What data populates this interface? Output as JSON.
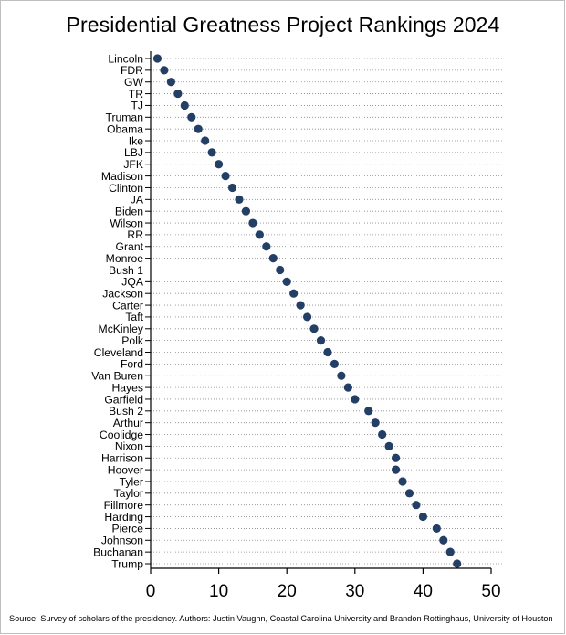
{
  "chart_data": {
    "type": "scatter",
    "title": "Presidential Greatness Project Rankings 2024",
    "xlabel": "",
    "ylabel": "",
    "xlim": [
      0,
      50
    ],
    "xticks": [
      "0",
      "10",
      "20",
      "30",
      "40",
      "50"
    ],
    "grid": "dotted horizontal lines",
    "marker_color": "#243f66",
    "categories": [
      "Lincoln",
      "FDR",
      "GW",
      "TR",
      "TJ",
      "Truman",
      "Obama",
      "Ike",
      "LBJ",
      "JFK",
      "Madison",
      "Clinton",
      "JA",
      "Biden",
      "Wilson",
      "RR",
      "Grant",
      "Monroe",
      "Bush 1",
      "JQA",
      "Jackson",
      "Carter",
      "Taft",
      "McKinley",
      "Polk",
      "Cleveland",
      "Ford",
      "Van Buren",
      "Hayes",
      "Garfield",
      "Bush 2",
      "Arthur",
      "Coolidge",
      "Nixon",
      "Harrison",
      "Hoover",
      "Tyler",
      "Taylor",
      "Fillmore",
      "Harding",
      "Pierce",
      "Johnson",
      "Buchanan",
      "Trump"
    ],
    "values": [
      1,
      2,
      3,
      4,
      5,
      6,
      7,
      8,
      9,
      10,
      11,
      12,
      13,
      14,
      15,
      16,
      17,
      18,
      19,
      20,
      21,
      22,
      23,
      24,
      25,
      26,
      27,
      28,
      29,
      30,
      32,
      33,
      34,
      35,
      36,
      36,
      37,
      38,
      39,
      40,
      42,
      43,
      44,
      45
    ]
  },
  "source_note": "Source: Survey of scholars of the presidency.  Authors: Justin Vaughn, Coastal Carolina University and Brandon Rottinghaus, University of Houston"
}
